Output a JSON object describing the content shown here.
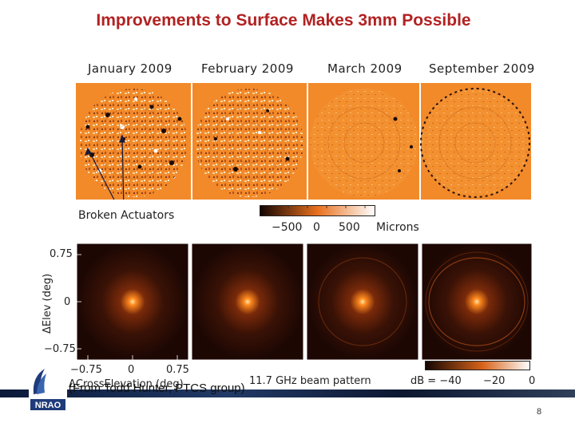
{
  "title": "Improvements to Surface Makes 3mm Possible",
  "surface_panels": [
    {
      "month": "January 2009"
    },
    {
      "month": "February 2009"
    },
    {
      "month": "March 2009"
    },
    {
      "month": "September 2009"
    }
  ],
  "broken_actuators_label": "Broken Actuators",
  "colorbar": {
    "ticks": [
      "−500",
      "0",
      "500"
    ],
    "unit": "Microns"
  },
  "beam": {
    "ylabel": "ΔElev (deg)",
    "yticks": [
      "0.75",
      "0",
      "−0.75"
    ],
    "xticks": [
      "−0.75",
      "0",
      "0.75"
    ],
    "xlabel": "ΔCrossElevation (deg)",
    "freq_caption": "11.7 GHz beam pattern",
    "db_label": "dB = −40",
    "db_mid": "−20",
    "db_max": "0"
  },
  "credit": "(From Todd Hunter, PTCS group)",
  "page_number": "8",
  "logo_text": "NRAO",
  "colors": {
    "title": "#b22222",
    "surface_bg": "#f28a2a"
  }
}
